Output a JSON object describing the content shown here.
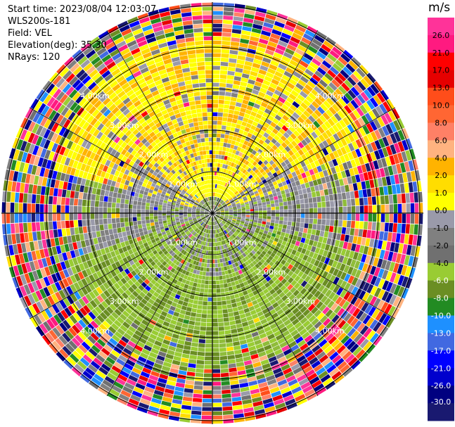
{
  "info": {
    "start_time": "Start time: 2023/08/04 12:03:07",
    "instrument": "WLS200s-181",
    "field": "Field: VEL",
    "elevation": "Elevation(deg): 35.30",
    "nrays": "NRays: 120"
  },
  "chart_data": {
    "type": "heatmap",
    "title": "",
    "projection": "polar PPI",
    "n_rays": 120,
    "elevation_deg": 35.3,
    "field": "VEL",
    "range_ring_labels": [
      "1.00km",
      "2.00km",
      "3.00km",
      "4.00km"
    ],
    "colorbar": {
      "unit": "m/s",
      "tick_labels": [
        "26.0",
        "21.0",
        "17.0",
        "13.0",
        "10.0",
        "8.0",
        "6.0",
        "4.0",
        "2.0",
        "1.0",
        "0.0",
        "-1.0",
        "-2.0",
        "-4.0",
        "-6.0",
        "-8.0",
        "-10.0",
        "-13.0",
        "-17.0",
        "-21.0",
        "-26.0",
        "-30.0"
      ],
      "colors": [
        "#ff3399",
        "#ff1a80",
        "#ff0000",
        "#e60000",
        "#ff4d1a",
        "#ff6633",
        "#ff8066",
        "#ffb380",
        "#ffb300",
        "#ffdd00",
        "#ffff00",
        "#9a9aaa",
        "#808080",
        "#707070",
        "#99cc33",
        "#6b8e23",
        "#228b22",
        "#1e90ff",
        "#4169e1",
        "#0000ff",
        "#0000cd",
        "#000080",
        "#191970"
      ]
    },
    "velocity_pattern": {
      "near_field": "0.0 to -4.0 (grey / olive) and +2.0 to +4.0 (yellow) radial wind",
      "far_field": "noise (all colors)"
    }
  }
}
